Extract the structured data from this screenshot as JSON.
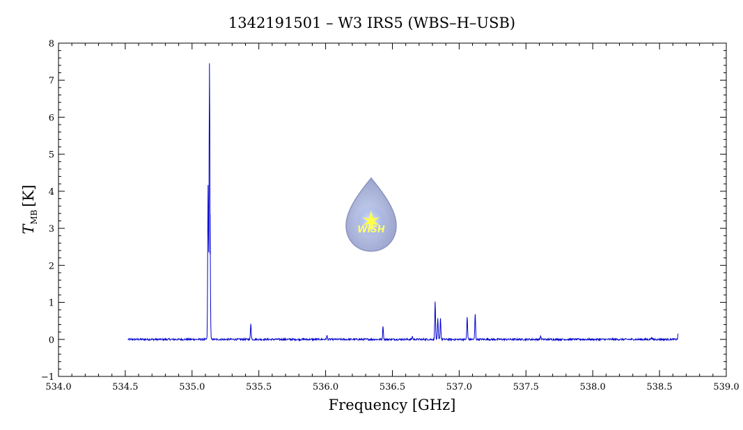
{
  "chart_data": {
    "type": "line",
    "title": "1342191501 – W3 IRS5 (WBS–H–USB)",
    "xlabel": "Frequency [GHz]",
    "ylabel_main": "T",
    "ylabel_sub": "MB",
    "ylabel_unit": "[K]",
    "xlim": [
      534.0,
      539.0
    ],
    "ylim": [
      -1,
      8
    ],
    "x_ticks": [
      "534.0",
      "534.5",
      "535.0",
      "535.5",
      "536.0",
      "536.5",
      "537.0",
      "537.5",
      "538.0",
      "538.5",
      "539.0"
    ],
    "y_ticks": [
      "−1",
      "0",
      "1",
      "2",
      "3",
      "4",
      "5",
      "6",
      "7",
      "8"
    ],
    "grid": false,
    "series": [
      {
        "x_start": 534.52,
        "x_end": 538.64,
        "baseline": 0.0,
        "color": "#0000cc",
        "peaks": [
          {
            "x": 535.12,
            "y": 4.15
          },
          {
            "x": 535.13,
            "y": 6.9
          },
          {
            "x": 535.135,
            "y": 2.3
          },
          {
            "x": 535.44,
            "y": 0.42
          },
          {
            "x": 536.01,
            "y": 0.1
          },
          {
            "x": 536.43,
            "y": 0.35
          },
          {
            "x": 536.65,
            "y": 0.08
          },
          {
            "x": 536.82,
            "y": 1.02
          },
          {
            "x": 536.84,
            "y": 0.55
          },
          {
            "x": 536.86,
            "y": 0.57
          },
          {
            "x": 537.06,
            "y": 0.6
          },
          {
            "x": 537.12,
            "y": 0.68
          },
          {
            "x": 537.61,
            "y": 0.1
          },
          {
            "x": 538.44,
            "y": 0.06
          },
          {
            "x": 538.64,
            "y": 0.15
          }
        ]
      }
    ]
  },
  "logo": {
    "text": "WISH",
    "colors": {
      "drop": "#aab4dc",
      "star": "#ffff44",
      "text": "#ffff66"
    }
  }
}
